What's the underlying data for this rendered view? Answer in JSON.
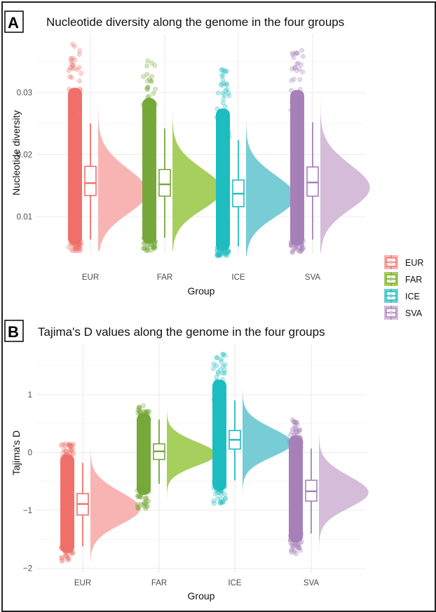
{
  "figure": {
    "legend": {
      "items": [
        {
          "label": "EUR",
          "color": "#F8766D"
        },
        {
          "label": "FAR",
          "color": "#7CAE00"
        },
        {
          "label": "ICE",
          "color": "#00BFC4"
        },
        {
          "label": "SVA",
          "color": "#C77CFF"
        }
      ],
      "position": "right-middle"
    }
  },
  "chart_data": [
    {
      "panel_label": "A",
      "type": "raincloud",
      "title": "Nucleotide diversity along the genome in the four groups",
      "xlabel": "Group",
      "ylabel": "Nucleotide diversity",
      "categories": [
        "EUR",
        "FAR",
        "ICE",
        "SVA"
      ],
      "colors": {
        "points": [
          "#F0706A",
          "#76A83A",
          "#1DBDC0",
          "#A780B8"
        ],
        "box": [
          "#F0706A",
          "#76A83A",
          "#1DBDC0",
          "#A780B8"
        ],
        "violin": [
          "#F8B4B2",
          "#A6CF5E",
          "#78CCD6",
          "#D5BDDA"
        ]
      },
      "yticks": [
        0.01,
        0.02,
        0.03
      ],
      "ytick_labels": [
        "0.01",
        "0.02",
        "0.03"
      ],
      "ylim": [
        0.0025,
        0.0395
      ],
      "grid": true,
      "boxes": [
        {
          "group": "EUR",
          "whisker_low": 0.0063,
          "q1": 0.0134,
          "median": 0.0154,
          "q3": 0.0181,
          "whisker_high": 0.025,
          "min": 0.0045,
          "max": 0.0378,
          "mode": 0.0145
        },
        {
          "group": "FAR",
          "whisker_low": 0.0066,
          "q1": 0.0133,
          "median": 0.0152,
          "q3": 0.0176,
          "whisker_high": 0.0242,
          "min": 0.0045,
          "max": 0.0351,
          "mode": 0.0148
        },
        {
          "group": "ICE",
          "whisker_low": 0.0052,
          "q1": 0.0116,
          "median": 0.0137,
          "q3": 0.0159,
          "whisker_high": 0.0223,
          "min": 0.0037,
          "max": 0.0337,
          "mode": 0.0137
        },
        {
          "group": "SVA",
          "whisker_low": 0.0063,
          "q1": 0.0133,
          "median": 0.0155,
          "q3": 0.018,
          "whisker_high": 0.0252,
          "min": 0.0042,
          "max": 0.0368,
          "mode": 0.0152
        }
      ]
    },
    {
      "panel_label": "B",
      "type": "raincloud",
      "title": "Tajima's D values along the genome in the four groups",
      "xlabel": "Group",
      "ylabel": "Tajima's D",
      "categories": [
        "EUR",
        "FAR",
        "ICE",
        "SVA"
      ],
      "colors": {
        "points": [
          "#F0706A",
          "#76A83A",
          "#1DBDC0",
          "#A780B8"
        ],
        "box": [
          "#F0706A",
          "#76A83A",
          "#1DBDC0",
          "#A780B8"
        ],
        "violin": [
          "#F8B4B2",
          "#A6CF5E",
          "#78CCD6",
          "#D5BDDA"
        ]
      },
      "yticks": [
        -2,
        -1,
        0,
        1
      ],
      "ytick_labels": [
        "−2",
        "−1",
        "0",
        "1"
      ],
      "ylim": [
        -2.0,
        1.85
      ],
      "grid": true,
      "boxes": [
        {
          "group": "EUR",
          "whisker_low": -1.62,
          "q1": -1.08,
          "median": -0.89,
          "q3": -0.71,
          "whisker_high": -0.18,
          "min": -1.88,
          "max": 0.15,
          "mode": -0.93
        },
        {
          "group": "FAR",
          "whisker_low": -0.54,
          "q1": -0.12,
          "median": 0.02,
          "q3": 0.15,
          "whisker_high": 0.57,
          "min": -0.97,
          "max": 0.81,
          "mode": 0.0
        },
        {
          "group": "ICE",
          "whisker_low": -0.48,
          "q1": 0.06,
          "median": 0.22,
          "q3": 0.38,
          "whisker_high": 0.9,
          "min": -0.88,
          "max": 1.7,
          "mode": 0.2
        },
        {
          "group": "SVA",
          "whisker_low": -1.4,
          "q1": -0.84,
          "median": -0.67,
          "q3": -0.48,
          "whisker_high": 0.07,
          "min": -1.75,
          "max": 0.57,
          "mode": -0.65
        }
      ]
    }
  ]
}
